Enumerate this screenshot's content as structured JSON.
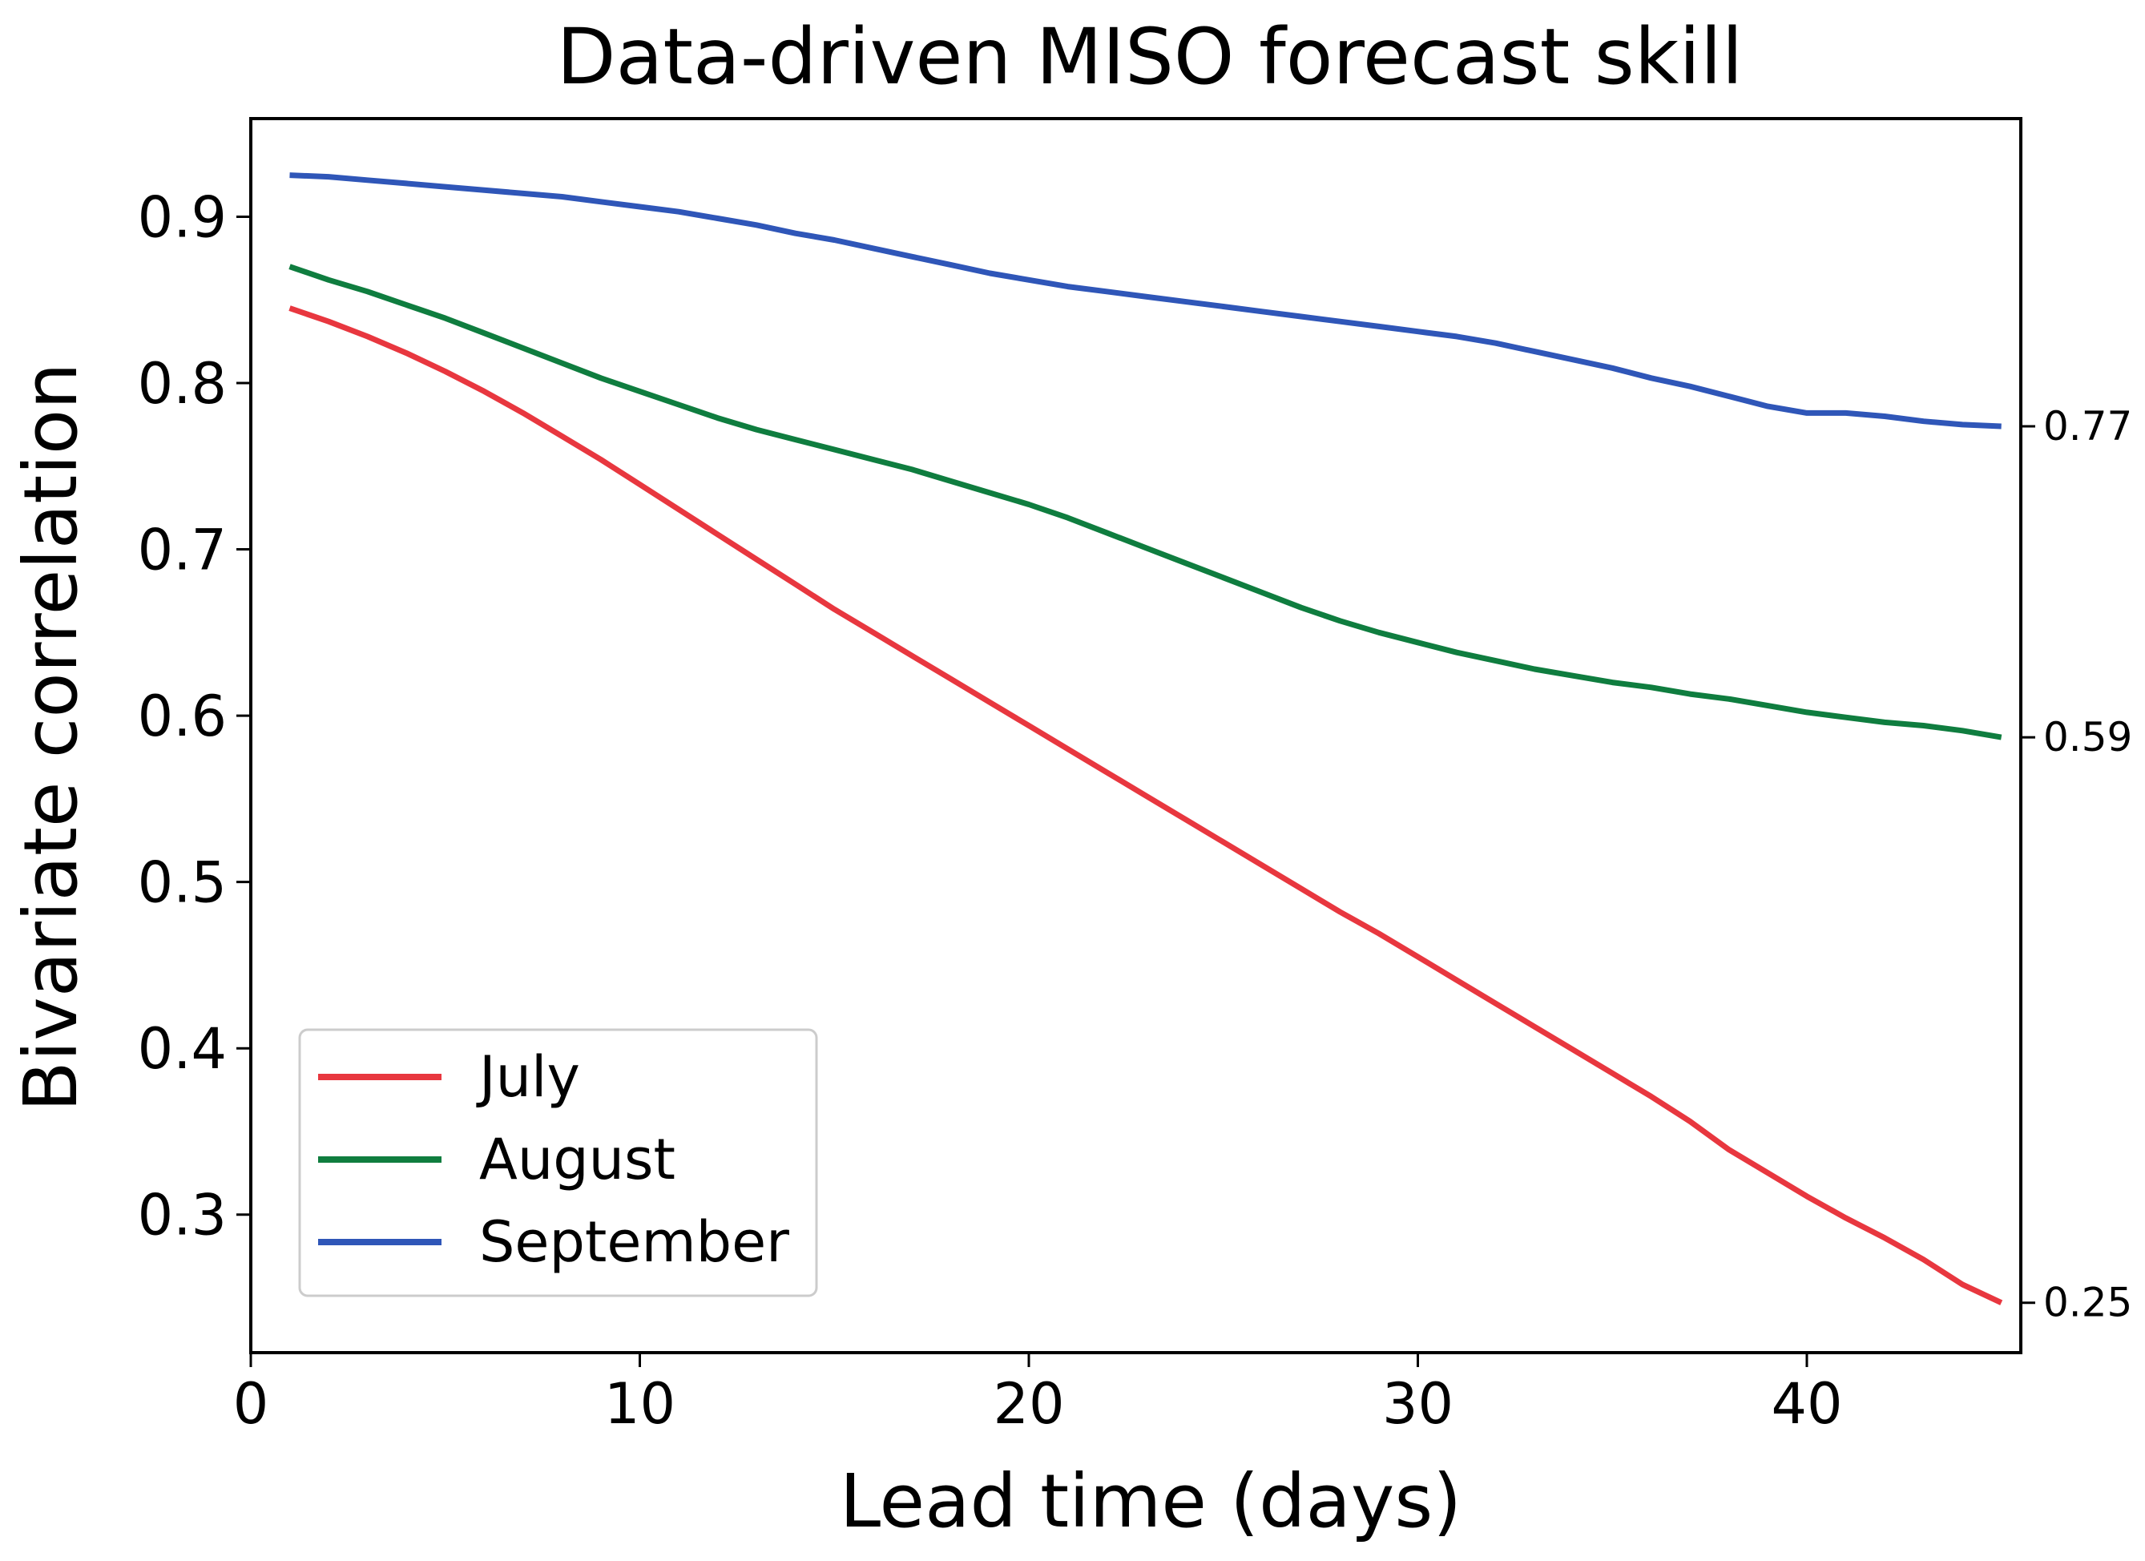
{
  "chart_data": {
    "type": "line",
    "title": "Data-driven MISO forecast skill",
    "xlabel": "Lead time (days)",
    "ylabel": "Bivariate correlation",
    "xlim": [
      0,
      45.5
    ],
    "ylim": [
      0.217,
      0.959
    ],
    "x_ticks": [
      0,
      10,
      20,
      30,
      40
    ],
    "x_tick_labels": [
      "0",
      "10",
      "20",
      "30",
      "40"
    ],
    "y_ticks": [
      0.3,
      0.4,
      0.5,
      0.6,
      0.7,
      0.8,
      0.9
    ],
    "y_tick_labels": [
      "0.3",
      "0.4",
      "0.5",
      "0.6",
      "0.7",
      "0.8",
      "0.9"
    ],
    "grid": false,
    "legend_location": "lower-left",
    "x": [
      1,
      2,
      3,
      4,
      5,
      6,
      7,
      8,
      9,
      10,
      11,
      12,
      13,
      14,
      15,
      16,
      17,
      18,
      19,
      20,
      21,
      22,
      23,
      24,
      25,
      26,
      27,
      28,
      29,
      30,
      31,
      32,
      33,
      34,
      35,
      36,
      37,
      38,
      39,
      40,
      41,
      42,
      43,
      44,
      45
    ],
    "series": [
      {
        "name": "July",
        "color": "#e8373f",
        "end_label": "0.25",
        "values": [
          0.845,
          0.837,
          0.828,
          0.818,
          0.807,
          0.795,
          0.782,
          0.768,
          0.754,
          0.739,
          0.724,
          0.709,
          0.694,
          0.679,
          0.664,
          0.65,
          0.636,
          0.622,
          0.608,
          0.594,
          0.58,
          0.566,
          0.552,
          0.538,
          0.524,
          0.51,
          0.496,
          0.482,
          0.469,
          0.455,
          0.441,
          0.427,
          0.413,
          0.399,
          0.385,
          0.371,
          0.356,
          0.339,
          0.325,
          0.311,
          0.298,
          0.286,
          0.273,
          0.258,
          0.247
        ]
      },
      {
        "name": "August",
        "color": "#0f7d3f",
        "end_label": "0.59",
        "values": [
          0.87,
          0.862,
          0.855,
          0.847,
          0.839,
          0.83,
          0.821,
          0.812,
          0.803,
          0.795,
          0.787,
          0.779,
          0.772,
          0.766,
          0.76,
          0.754,
          0.748,
          0.741,
          0.734,
          0.727,
          0.719,
          0.71,
          0.701,
          0.692,
          0.683,
          0.674,
          0.665,
          0.657,
          0.65,
          0.644,
          0.638,
          0.633,
          0.628,
          0.624,
          0.62,
          0.617,
          0.613,
          0.61,
          0.606,
          0.602,
          0.599,
          0.596,
          0.594,
          0.591,
          0.587
        ]
      },
      {
        "name": "September",
        "color": "#2f56b8",
        "end_label": "0.77",
        "values": [
          0.925,
          0.924,
          0.922,
          0.92,
          0.918,
          0.916,
          0.914,
          0.912,
          0.909,
          0.906,
          0.903,
          0.899,
          0.895,
          0.89,
          0.886,
          0.881,
          0.876,
          0.871,
          0.866,
          0.862,
          0.858,
          0.855,
          0.852,
          0.849,
          0.846,
          0.843,
          0.84,
          0.837,
          0.834,
          0.831,
          0.828,
          0.824,
          0.819,
          0.814,
          0.809,
          0.803,
          0.798,
          0.792,
          0.786,
          0.782,
          0.782,
          0.78,
          0.777,
          0.775,
          0.774
        ]
      }
    ]
  }
}
